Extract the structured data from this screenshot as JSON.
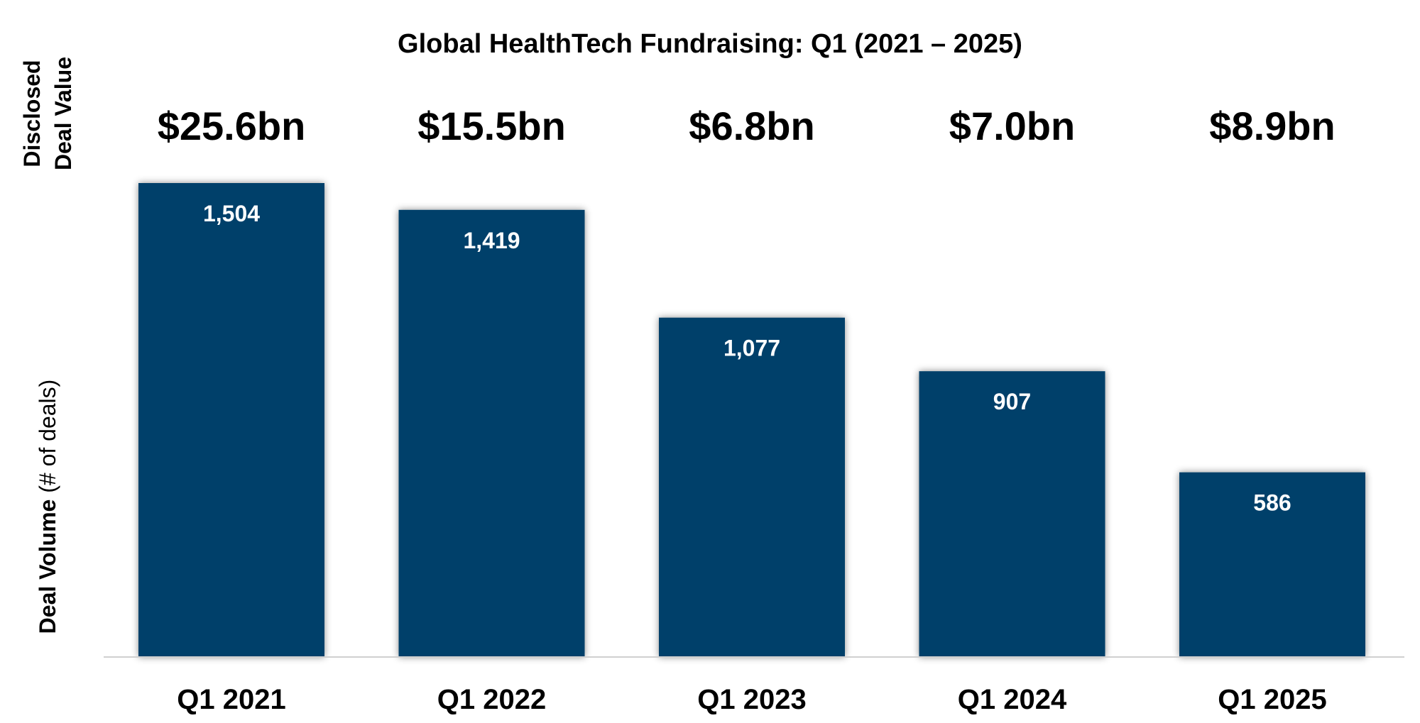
{
  "chart_data": {
    "type": "bar",
    "title": "Global HealthTech Fundraising: Q1 (2021 – 2025)",
    "categories": [
      "Q1 2021",
      "Q1 2022",
      "Q1 2023",
      "Q1 2024",
      "Q1 2025"
    ],
    "values": [
      1504,
      1419,
      1077,
      907,
      586
    ],
    "data_labels": [
      "1,504",
      "1,419",
      "1,077",
      "907",
      "586"
    ],
    "disclosed_deal_values": [
      "$25.6bn",
      "$15.5bn",
      "$6.8bn",
      "$7.0bn",
      "$8.9bn"
    ],
    "ylabel": {
      "main": "Deal Volume",
      "unit": " (# of deals)"
    },
    "secondary_label": {
      "line1": "Disclosed",
      "line2": "Deal Value"
    },
    "ylim": [
      0,
      1504
    ],
    "grid": false,
    "legend": "none",
    "colors": {
      "bar": "#003f6b",
      "bar_label": "#ffffff",
      "axis_line": "#d0d0d0",
      "text": "#000000"
    }
  }
}
